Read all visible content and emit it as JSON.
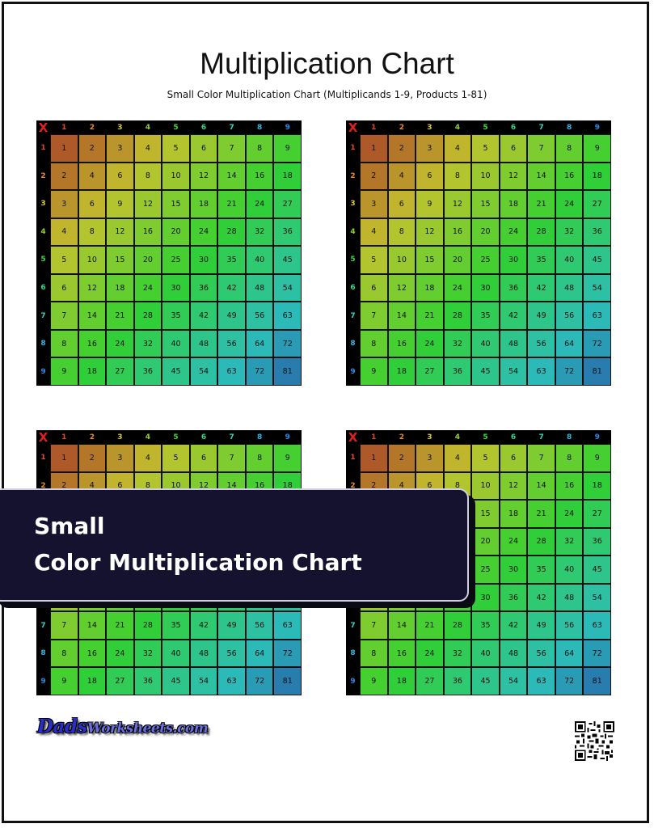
{
  "page": {
    "title": "Multiplication Chart",
    "subtitle": "Small Color Multiplication Chart (Multiplicands 1-9, Products 1-81)"
  },
  "chart": {
    "corner_symbol": "X",
    "multiplicands": [
      1,
      2,
      3,
      4,
      5,
      6,
      7,
      8,
      9
    ],
    "header_colors": [
      "#e8452a",
      "#e98a2a",
      "#d9c92c",
      "#8fd12e",
      "#3fd83a",
      "#2ed98a",
      "#2ad8c0",
      "#2ab8e0",
      "#2a8ae8"
    ],
    "corner_color": "#e0201c",
    "copies": 4
  },
  "banner": {
    "line1": "Small",
    "line2": "Color Multiplication Chart"
  },
  "footer": {
    "logo_part1": "Dads",
    "logo_part2": "Worksheets.com",
    "qr_icon": "qr-code-icon"
  }
}
